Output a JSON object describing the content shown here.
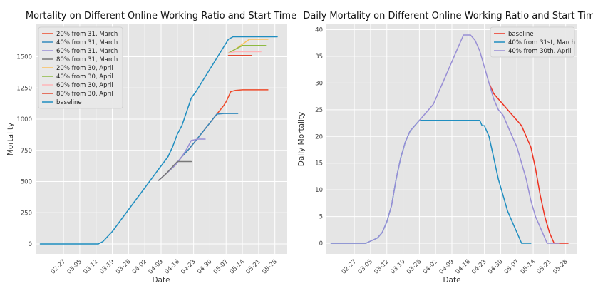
{
  "chart_data": [
    {
      "type": "line",
      "title": "Mortality on Different Online Working Ratio and Start Time",
      "xlabel": "Date",
      "ylabel": "Mortality",
      "x_ticks": [
        "02-27",
        "03-05",
        "03-12",
        "03-19",
        "03-26",
        "04-02",
        "04-09",
        "04-16",
        "04-23",
        "04-30",
        "05-07",
        "05-14",
        "05-21",
        "05-28"
      ],
      "x_ticks_day": [
        0,
        7,
        14,
        21,
        28,
        35,
        42,
        49,
        56,
        63,
        70,
        77,
        84,
        91
      ],
      "xlim": [
        -12,
        96
      ],
      "y_ticks": [
        0,
        250,
        500,
        750,
        1000,
        1250,
        1500
      ],
      "ylim": [
        -80,
        1760
      ],
      "grid": true,
      "legend_position": "top-left",
      "series": [
        {
          "name": "20% from 31, March",
          "color": "#ee4b2b",
          "x": [
            41,
            44,
            48,
            51,
            54,
            57,
            60,
            63,
            66,
            69,
            70,
            72,
            74,
            77,
            80,
            84,
            88
          ],
          "y": [
            510,
            560,
            630,
            700,
            760,
            830,
            900,
            970,
            1040,
            1110,
            1140,
            1220,
            1230,
            1235,
            1235,
            1235,
            1235
          ]
        },
        {
          "name": "40% from 31, March",
          "color": "#348abd",
          "x": [
            41,
            44,
            48,
            51,
            54,
            57,
            60,
            63,
            66,
            69,
            72,
            75
          ],
          "y": [
            510,
            560,
            630,
            700,
            760,
            830,
            900,
            970,
            1040,
            1045,
            1045,
            1045
          ]
        },
        {
          "name": "60% from 31, March",
          "color": "#988ed5",
          "x": [
            41,
            44,
            48,
            51,
            53,
            55,
            58,
            61
          ],
          "y": [
            510,
            560,
            630,
            700,
            760,
            830,
            840,
            840
          ]
        },
        {
          "name": "80% from 31, March",
          "color": "#777777",
          "x": [
            41,
            44,
            47,
            49,
            52,
            55
          ],
          "y": [
            510,
            560,
            620,
            660,
            660,
            660
          ]
        },
        {
          "name": "20% from 30, April",
          "color": "#fbc15e",
          "x": [
            71,
            74,
            77,
            80,
            84,
            88
          ],
          "y": [
            1530,
            1560,
            1600,
            1640,
            1640,
            1640
          ]
        },
        {
          "name": "40% from 30, April",
          "color": "#8eba42",
          "x": [
            71,
            74,
            77,
            80,
            84,
            87
          ],
          "y": [
            1530,
            1560,
            1590,
            1590,
            1590,
            1590
          ]
        },
        {
          "name": "60% from 30, April",
          "color": "#ffb5b8",
          "x": [
            71,
            74,
            77,
            81,
            85
          ],
          "y": [
            1530,
            1540,
            1540,
            1540,
            1540
          ]
        },
        {
          "name": "80% from 30, April",
          "color": "#e24a33",
          "x": [
            71,
            73,
            77,
            81
          ],
          "y": [
            1510,
            1510,
            1510,
            1510
          ]
        },
        {
          "name": "baseline",
          "color": "#1f8ec0",
          "x": [
            -10,
            0,
            5,
            10,
            15,
            17,
            19,
            21,
            23,
            25,
            27,
            29,
            31,
            33,
            35,
            37,
            39,
            41,
            43,
            45,
            47,
            49,
            51,
            53,
            55,
            57,
            59,
            61,
            63,
            65,
            67,
            69,
            71,
            73,
            75,
            77,
            80,
            83,
            86,
            89,
            92
          ],
          "y": [
            0,
            0,
            0,
            0,
            0,
            20,
            60,
            100,
            150,
            200,
            250,
            300,
            350,
            400,
            450,
            500,
            550,
            600,
            650,
            700,
            780,
            880,
            950,
            1060,
            1170,
            1220,
            1280,
            1340,
            1400,
            1460,
            1520,
            1580,
            1640,
            1660,
            1660,
            1660,
            1660,
            1660,
            1660,
            1660,
            1660
          ]
        }
      ]
    },
    {
      "type": "line",
      "title": "Daily Mortality on Different Online Working Ratio and Start Time",
      "xlabel": "Date",
      "ylabel": "Daily Mortality",
      "x_ticks": [
        "02-27",
        "03-05",
        "03-12",
        "03-19",
        "03-26",
        "04-02",
        "04-09",
        "04-16",
        "04-23",
        "04-30",
        "05-07",
        "05-14",
        "05-21",
        "05-28"
      ],
      "x_ticks_day": [
        0,
        7,
        14,
        21,
        28,
        35,
        42,
        49,
        56,
        63,
        70,
        77,
        84,
        91
      ],
      "xlim": [
        -12,
        96
      ],
      "y_ticks": [
        0,
        5,
        10,
        15,
        20,
        25,
        30,
        35,
        40
      ],
      "ylim": [
        -2,
        41
      ],
      "grid": true,
      "legend_position": "top-right",
      "series": [
        {
          "name": "baseline",
          "color": "#ee3322",
          "x": [
            58,
            60,
            62,
            64,
            66,
            68,
            70,
            72,
            74,
            76,
            78,
            80,
            82,
            84,
            85,
            86,
            88,
            92
          ],
          "y": [
            30,
            28,
            27,
            26,
            25,
            24,
            23,
            22,
            20,
            18,
            14,
            9,
            5,
            2,
            1,
            0,
            0,
            0
          ]
        },
        {
          "name": "40% from 31st, March",
          "color": "#1f8ec0",
          "x": [
            -10,
            0,
            5,
            10,
            12,
            14,
            16,
            18,
            19,
            20,
            22,
            24,
            26,
            28,
            29,
            30,
            31,
            32,
            35,
            38,
            42,
            45,
            48,
            51,
            54,
            55,
            56,
            57,
            58,
            59,
            60,
            61,
            62,
            64,
            66,
            68,
            70,
            72,
            74,
            75,
            76
          ],
          "y": [
            0,
            0,
            0,
            1,
            2,
            4,
            7,
            12,
            14,
            16,
            19,
            21,
            22,
            23,
            23,
            23,
            23,
            23,
            23,
            23,
            23,
            23,
            23,
            23,
            23,
            22,
            22,
            21,
            20,
            18,
            16,
            14,
            12,
            9,
            6,
            4,
            2,
            0,
            0,
            0,
            0
          ]
        },
        {
          "name": "40% from 30th, April",
          "color": "#988ed5",
          "x": [
            -10,
            0,
            5,
            10,
            12,
            14,
            16,
            18,
            19,
            20,
            22,
            24,
            26,
            28,
            30,
            32,
            34,
            36,
            38,
            40,
            42,
            44,
            46,
            47,
            48,
            50,
            52,
            54,
            56,
            58,
            60,
            62,
            64,
            66,
            68,
            70,
            72,
            74,
            76,
            78,
            80,
            82,
            83,
            84,
            86,
            88
          ],
          "y": [
            0,
            0,
            0,
            1,
            2,
            4,
            7,
            12,
            14,
            16,
            19,
            21,
            22,
            23,
            24,
            25,
            26,
            28,
            30,
            32,
            34,
            36,
            38,
            39,
            39,
            39,
            38,
            36,
            33,
            30,
            27,
            25,
            24,
            22,
            20,
            18,
            15,
            12,
            8,
            5,
            3,
            1,
            0,
            0,
            0,
            0
          ]
        }
      ]
    }
  ]
}
